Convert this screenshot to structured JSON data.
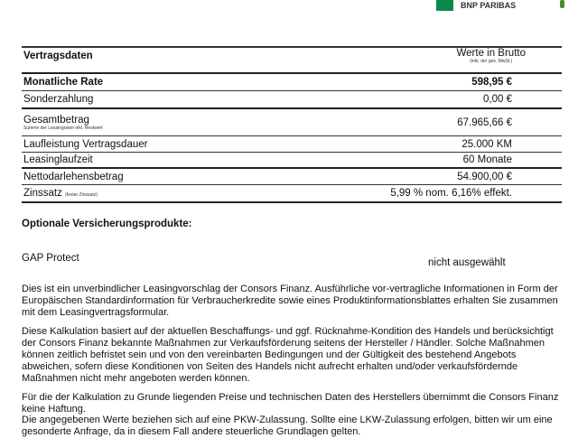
{
  "logo": {
    "text": "BNP PARIBAS"
  },
  "table": {
    "title": "Vertragsdaten",
    "values_header": "Werte in Brutto",
    "values_note": "(inkl. der ges. MwSt.)",
    "rows": [
      {
        "label": "Monatliche Rate",
        "value": "598,95 €"
      },
      {
        "label": "Sonderzahlung",
        "value": "0,00 €"
      },
      {
        "label": "Gesamtbetrag",
        "note": "Summe der Leasingraten inkl. Restwert",
        "value": "67.965,66 €"
      },
      {
        "label": "Laufleistung Vertragsdauer",
        "value": "25.000 KM"
      },
      {
        "label": "Leasinglaufzeit",
        "value": "60 Monate"
      },
      {
        "label": "Nettodarlehensbetrag",
        "value": "54.900,00 €"
      },
      {
        "label": "Zinssatz",
        "note": "(fester Zinssatz)",
        "value": "5,99 % nom. 6,16% effekt."
      }
    ]
  },
  "insurance": {
    "title": "Optionale Versicherungsprodukte:",
    "item": "GAP Protect",
    "status": "nicht ausgewählt"
  },
  "paragraphs": [
    "Dies ist ein unverbindlicher Leasingvorschlag der Consors Finanz. Ausführliche vor-vertragliche Informationen in Form der Europäischen Standardinformation für Verbraucherkredite sowie eines Produktinformationsblattes erhalten Sie zusammen mit dem Leasingvertragsformular.",
    "Diese Kalkulation basiert auf der aktuellen Beschaffungs- und ggf. Rücknahme-Kondition des Handels und berücksichtigt der Consors Finanz bekannte Maßnahmen zur Verkaufsförderung seitens der Hersteller / Händler. Solche Maßnahmen können zeitlich befristet sein und von den vereinbarten Bedingungen und der Gültigkeit des bestehend Angebots abweichen, sofern diese Konditionen von Seiten des Handels nicht aufrecht erhalten und/oder verkaufsfördernde Maßnahmen nicht mehr angeboten werden können.",
    "Für die der Kalkulation zu Grunde liegenden Preise und technischen Daten des Herstellers übernimmt die Consors Finanz keine Haftung.",
    "Die angegebenen Werte beziehen sich auf eine PKW-Zulassung. Sollte eine LKW-Zulassung erfolgen, bitten wir um eine gesonderte Anfrage, da in diesem Fall andere steuerliche Grundlagen gelten."
  ]
}
